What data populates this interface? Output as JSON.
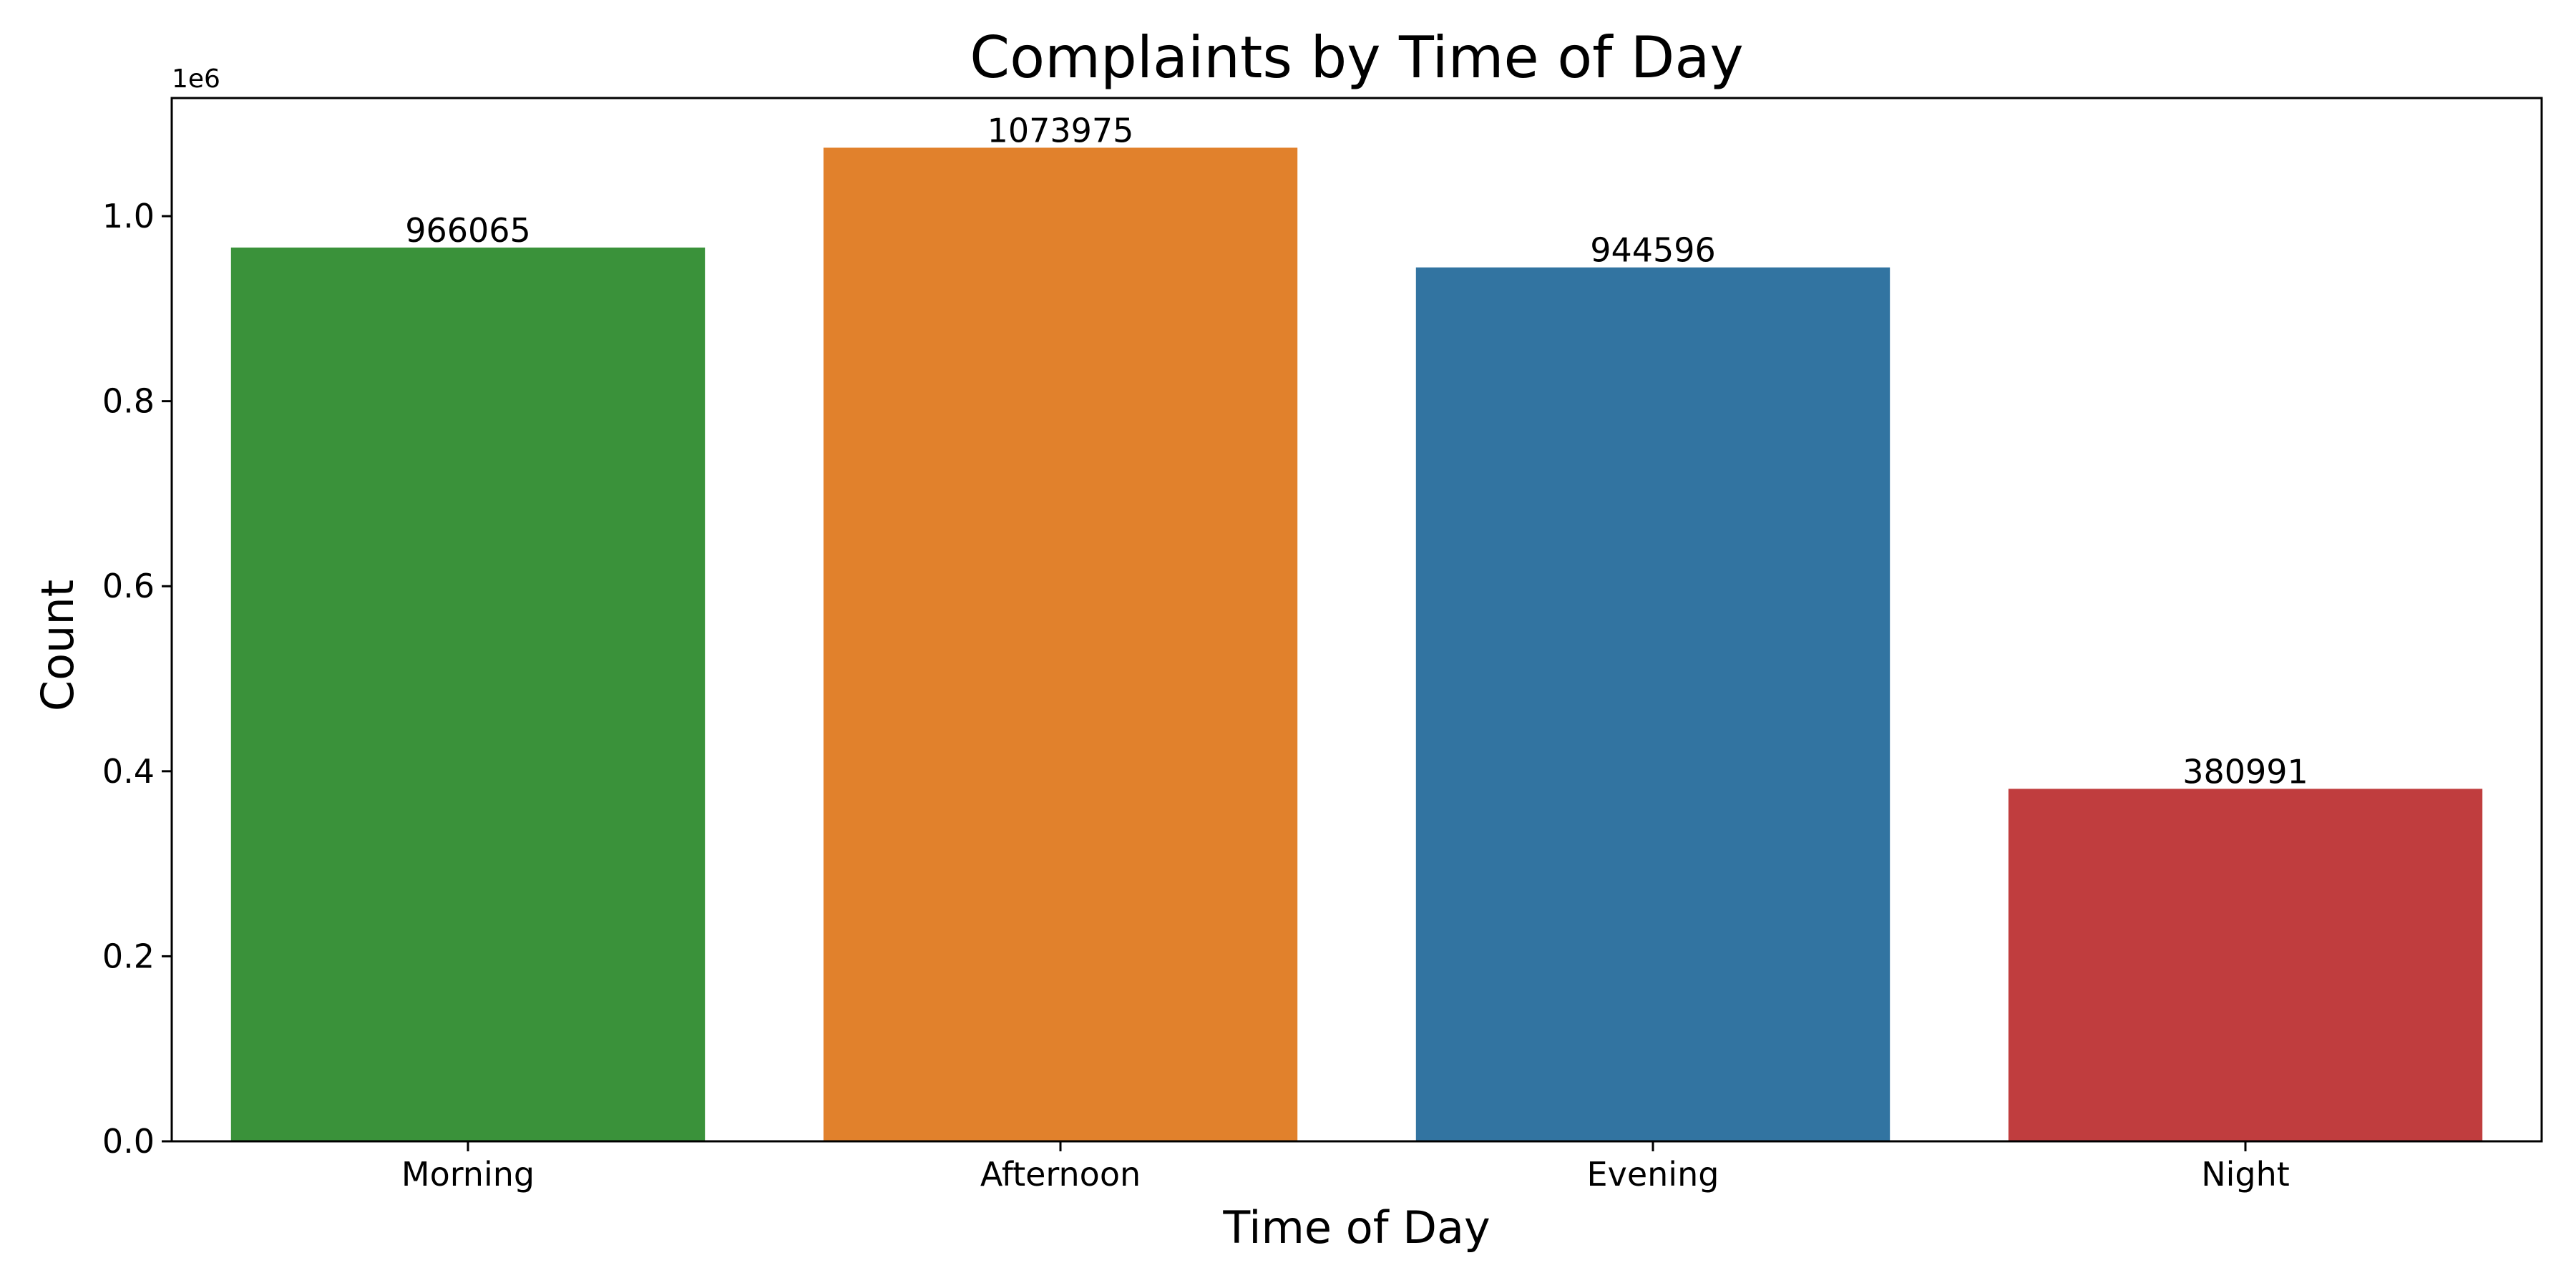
{
  "chart_data": {
    "type": "bar",
    "title": "Complaints by Time of Day",
    "xlabel": "Time of Day",
    "ylabel": "Count",
    "y_offset_label": "1e6",
    "categories": [
      "Morning",
      "Afternoon",
      "Evening",
      "Night"
    ],
    "values": [
      966065,
      1073975,
      944596,
      380991
    ],
    "data_labels": [
      "966065",
      "1073975",
      "944596",
      "380991"
    ],
    "colors": [
      "#3a923a",
      "#e1812c",
      "#3274a1",
      "#c03d3e"
    ],
    "ylim": [
      0,
      1127674
    ],
    "yticks": [
      0,
      200000,
      400000,
      600000,
      800000,
      1000000
    ],
    "ytick_labels": [
      "0.0",
      "0.2",
      "0.4",
      "0.6",
      "0.8",
      "1.0"
    ],
    "grid": false,
    "legend": false
  }
}
